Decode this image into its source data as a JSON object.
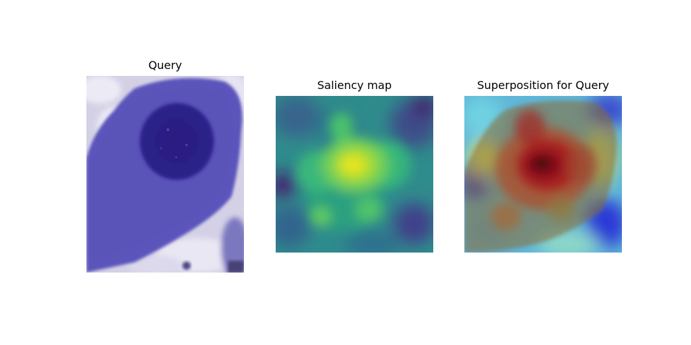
{
  "figure": {
    "panels": [
      {
        "title": "Query",
        "content": "cell-microscopy-image"
      },
      {
        "title": "Saliency map",
        "content": "saliency-heatmap-viridis"
      },
      {
        "title": "Superposition for Query",
        "content": "saliency-overlay-jet"
      }
    ]
  }
}
